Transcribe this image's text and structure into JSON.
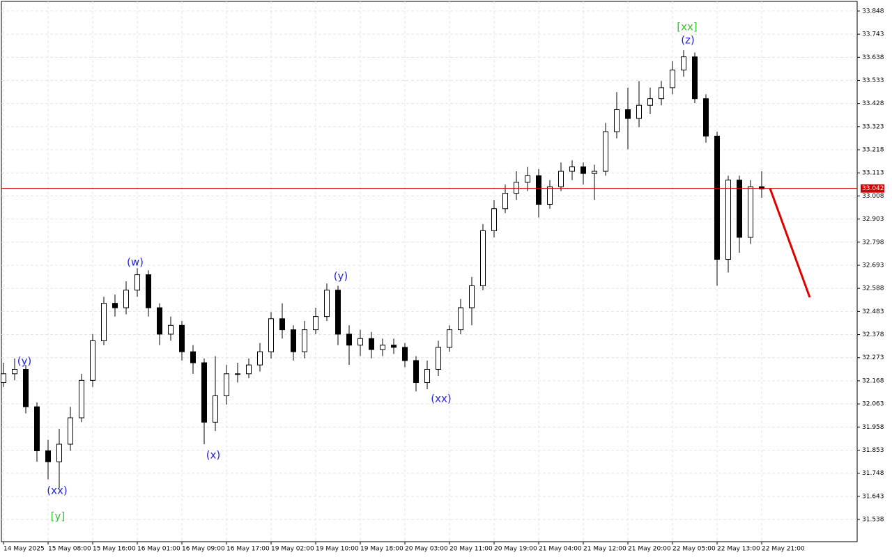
{
  "chart_data": {
    "type": "candlestick",
    "categories": [
      "14 May 2025",
      null,
      null,
      null,
      "15 May 08:00",
      null,
      null,
      null,
      "15 May 16:00",
      null,
      null,
      null,
      "16 May 01:00",
      null,
      null,
      null,
      "16 May 09:00",
      null,
      null,
      null,
      "16 May 17:00",
      null,
      null,
      null,
      "19 May 02:00",
      null,
      null,
      null,
      "19 May 10:00",
      null,
      null,
      null,
      "19 May 18:00",
      null,
      null,
      null,
      "20 May 03:00",
      null,
      null,
      null,
      "20 May 11:00",
      null,
      null,
      null,
      "20 May 19:00",
      null,
      null,
      null,
      "21 May 04:00",
      null,
      null,
      null,
      "21 May 12:00",
      null,
      null,
      null,
      "21 May 20:00",
      null,
      null,
      null,
      "22 May 05:00",
      null,
      null,
      null,
      "22 May 13:00",
      null,
      null,
      null,
      "22 May 21:00"
    ],
    "open": [
      32.16,
      32.2,
      32.22,
      32.05,
      31.85,
      31.8,
      31.88,
      32.0,
      32.17,
      32.35,
      32.52,
      32.5,
      32.58,
      32.65,
      32.5,
      32.38,
      32.42,
      32.3,
      32.25,
      31.98,
      32.1,
      32.2,
      32.2,
      32.24,
      32.3,
      32.45,
      32.4,
      32.3,
      32.4,
      32.46,
      32.58,
      32.38,
      32.33,
      32.36,
      32.31,
      32.33,
      32.32,
      32.26,
      32.16,
      32.22,
      32.32,
      32.4,
      32.5,
      32.6,
      32.85,
      32.95,
      33.02,
      33.07,
      33.1,
      32.97,
      33.05,
      33.12,
      33.14,
      33.11,
      33.12,
      33.3,
      33.4,
      33.36,
      33.42,
      33.45,
      33.5,
      33.58,
      33.64,
      33.45,
      33.28,
      32.72,
      33.08,
      32.82,
      33.05
    ],
    "high": [
      32.25,
      32.27,
      32.24,
      32.07,
      31.9,
      31.95,
      32.05,
      32.2,
      32.38,
      32.55,
      32.56,
      32.62,
      32.68,
      32.67,
      32.52,
      32.46,
      32.44,
      32.33,
      32.27,
      32.28,
      32.24,
      32.25,
      32.27,
      32.34,
      32.48,
      32.52,
      32.42,
      32.44,
      32.5,
      32.61,
      32.6,
      32.42,
      32.4,
      32.39,
      32.36,
      32.36,
      32.34,
      32.28,
      32.26,
      32.35,
      32.42,
      32.54,
      32.64,
      32.88,
      32.99,
      33.06,
      33.12,
      33.14,
      33.13,
      33.08,
      33.16,
      33.17,
      33.16,
      33.15,
      33.34,
      33.48,
      33.5,
      33.53,
      33.5,
      33.53,
      33.62,
      33.67,
      33.66,
      33.47,
      33.3,
      33.1,
      33.1,
      33.08,
      33.12
    ],
    "low": [
      32.14,
      32.17,
      32.02,
      31.8,
      31.72,
      31.68,
      31.85,
      31.98,
      32.14,
      32.33,
      32.46,
      32.47,
      32.55,
      32.46,
      32.33,
      32.35,
      32.26,
      32.2,
      31.88,
      31.94,
      32.06,
      32.16,
      32.18,
      32.21,
      32.27,
      32.36,
      32.26,
      32.27,
      32.38,
      32.44,
      32.33,
      32.24,
      32.28,
      32.27,
      32.28,
      32.29,
      32.23,
      32.12,
      32.13,
      32.19,
      32.3,
      32.38,
      32.42,
      32.58,
      32.82,
      32.93,
      32.99,
      33.03,
      32.91,
      32.95,
      33.03,
      33.08,
      33.06,
      32.99,
      33.1,
      33.27,
      33.22,
      33.32,
      33.38,
      33.42,
      33.47,
      33.55,
      33.43,
      33.25,
      32.6,
      32.66,
      32.75,
      32.79,
      33.0
    ],
    "close": [
      32.2,
      32.22,
      32.05,
      31.85,
      31.8,
      31.88,
      32.0,
      32.17,
      32.35,
      32.52,
      32.5,
      32.58,
      32.65,
      32.5,
      32.38,
      32.42,
      32.3,
      32.25,
      31.98,
      32.1,
      32.2,
      32.2,
      32.24,
      32.3,
      32.45,
      32.4,
      32.3,
      32.4,
      32.46,
      32.58,
      32.38,
      32.33,
      32.36,
      32.31,
      32.33,
      32.32,
      32.26,
      32.16,
      32.22,
      32.32,
      32.4,
      32.5,
      32.6,
      32.85,
      32.95,
      33.02,
      33.07,
      33.1,
      32.97,
      33.05,
      33.12,
      33.14,
      33.11,
      33.12,
      33.3,
      33.4,
      33.36,
      33.42,
      33.45,
      33.5,
      33.58,
      33.64,
      33.45,
      33.28,
      32.72,
      33.08,
      32.82,
      33.05,
      33.04
    ],
    "ylim": [
      31.437,
      33.892
    ],
    "yticks": [
      31.538,
      31.643,
      31.748,
      31.853,
      31.958,
      32.063,
      32.168,
      32.273,
      32.378,
      32.483,
      32.588,
      32.693,
      32.798,
      32.903,
      33.008,
      33.113,
      33.218,
      33.323,
      33.428,
      33.533,
      33.638,
      33.743,
      33.848
    ],
    "grid": true,
    "current_price": 33.042,
    "current_price_color": "#d00000",
    "forecast": {
      "color": "#e00000",
      "values": [
        33.042,
        32.547
      ]
    },
    "annotations": [
      {
        "text": "(y)",
        "color": "#2424d8"
      },
      {
        "text": "(xx)",
        "color": "#2424d8"
      },
      {
        "text": "[y]",
        "color": "#32c032"
      },
      {
        "text": "(w)",
        "color": "#2424d8"
      },
      {
        "text": "(x)",
        "color": "#2424d8"
      },
      {
        "text": "(y)",
        "color": "#2424d8"
      },
      {
        "text": "(xx)",
        "color": "#2424d8"
      },
      {
        "text": "(z)",
        "color": "#2424d8"
      },
      {
        "text": "[xx]",
        "color": "#32c032"
      }
    ]
  }
}
